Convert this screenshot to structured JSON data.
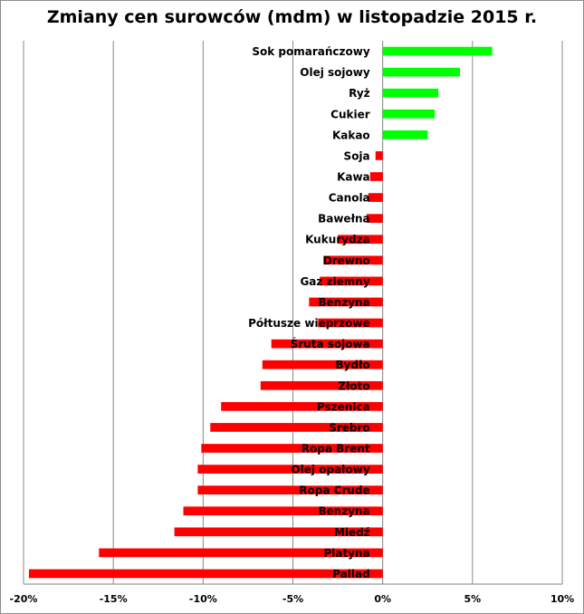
{
  "chart_data": {
    "type": "bar",
    "orientation": "horizontal",
    "title": "Zmiany cen surowców (mdm) w listopadzie 2015 r.",
    "xlabel": "",
    "ylabel": "",
    "xlim": [
      -20,
      10
    ],
    "grid": true,
    "legend": "none",
    "x_ticks": [
      "-20%",
      "-15%",
      "-10%",
      "-5%",
      "0%",
      "5%",
      "10%"
    ],
    "x_tick_values": [
      -20,
      -15,
      -10,
      -5,
      0,
      5,
      10
    ],
    "categories": [
      "Sok pomarańczowy",
      "Olej sojowy",
      "Ryż",
      "Cukier",
      "Kakao",
      "Soja",
      "Kawa",
      "Canola",
      "Bawełna",
      "Kukurydza",
      "Drewno",
      "Gaz ziemny",
      "Benzyna",
      "Półtusze wieprzowe",
      "Śruta sojowa",
      "Bydło",
      "Złoto",
      "Pszenica",
      "Srebro",
      "Ropa Brent",
      "Olej opałowy",
      "Ropa Crude",
      "Benzyna",
      "Miedź",
      "Platyna",
      "Pallad"
    ],
    "values": [
      6.1,
      4.3,
      3.1,
      2.9,
      2.5,
      -0.4,
      -0.7,
      -0.8,
      -0.9,
      -2.5,
      -3.3,
      -3.5,
      -4.1,
      -3.6,
      -6.2,
      -6.7,
      -6.8,
      -9.0,
      -9.6,
      -10.1,
      -10.3,
      -10.3,
      -11.1,
      -11.6,
      -15.8,
      -19.7
    ],
    "colors": {
      "positive": "#00ff00",
      "negative": "#ff0000",
      "grid": "#888888",
      "axis": "#808080"
    }
  }
}
